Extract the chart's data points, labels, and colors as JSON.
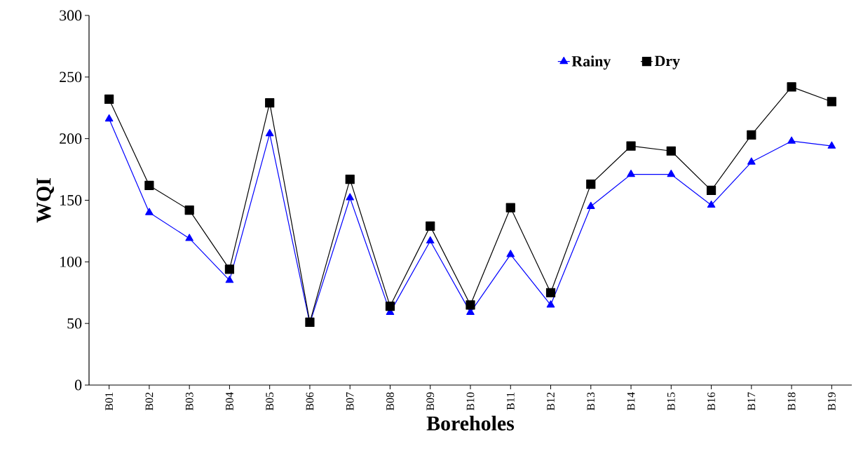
{
  "chart_data": {
    "type": "line",
    "xlabel": "Boreholes",
    "ylabel": "WQI",
    "categories": [
      "B01",
      "B02",
      "B03",
      "B04",
      "B05",
      "B06",
      "B07",
      "B08",
      "B09",
      "B10",
      "B11",
      "B12",
      "B13",
      "B14",
      "B15",
      "B16",
      "B17",
      "B18",
      "B19"
    ],
    "series": [
      {
        "name": "Rainy",
        "color": "#0000ff",
        "marker": "triangle",
        "values": [
          216,
          140,
          119,
          85,
          204,
          50,
          152,
          59,
          117,
          59,
          106,
          65,
          145,
          171,
          171,
          146,
          181,
          198,
          194
        ]
      },
      {
        "name": "Dry",
        "color": "#000000",
        "marker": "square",
        "values": [
          232,
          162,
          142,
          94,
          229,
          51,
          167,
          64,
          129,
          65,
          144,
          75,
          163,
          194,
          190,
          158,
          203,
          242,
          230
        ]
      }
    ],
    "ylim": [
      0,
      300
    ],
    "yticks": [
      0,
      50,
      100,
      150,
      200,
      250,
      300
    ],
    "legend": "top right",
    "line_style": "solid",
    "grid": false
  }
}
